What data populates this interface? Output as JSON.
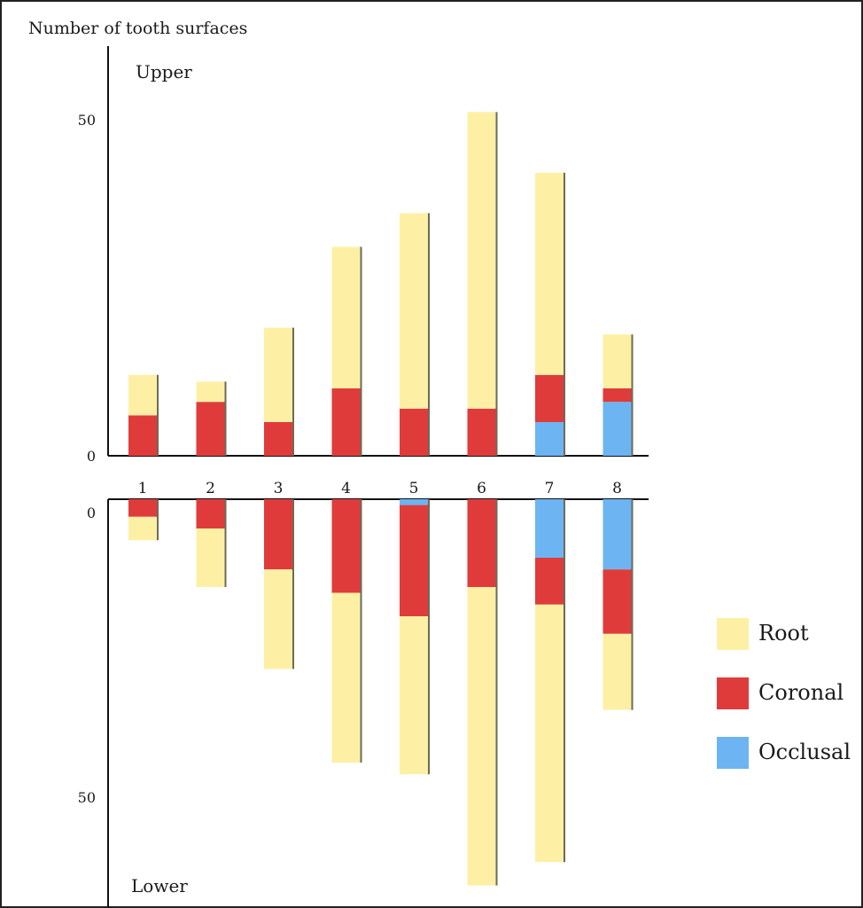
{
  "chart_data": {
    "type": "bar",
    "stacked": true,
    "mirrored": true,
    "ylabel": "Number of tooth surfaces",
    "categories": [
      "1",
      "2",
      "3",
      "4",
      "5",
      "6",
      "7",
      "8"
    ],
    "upper": {
      "label": "Upper",
      "ticks": [
        "0",
        "50"
      ],
      "ylim": [
        0,
        51
      ],
      "series": [
        {
          "name": "Occlusal",
          "color": "#6cb4f2",
          "values": [
            0,
            0,
            0,
            0,
            0,
            0,
            5,
            8
          ]
        },
        {
          "name": "Coronal",
          "color": "#e03b3b",
          "values": [
            6,
            8,
            5,
            10,
            7,
            7,
            7,
            2
          ]
        },
        {
          "name": "Root",
          "color": "#fdf0a4",
          "values": [
            6,
            3,
            14,
            21,
            29,
            44,
            30,
            8
          ]
        }
      ]
    },
    "lower": {
      "label": "Lower",
      "ticks": [
        "0",
        "50"
      ],
      "ylim": [
        0,
        66
      ],
      "series": [
        {
          "name": "Occlusal",
          "color": "#6cb4f2",
          "values": [
            0,
            0,
            0,
            0,
            1,
            0,
            10,
            12
          ]
        },
        {
          "name": "Coronal",
          "color": "#e03b3b",
          "values": [
            3,
            5,
            12,
            16,
            19,
            15,
            8,
            11
          ]
        },
        {
          "name": "Root",
          "color": "#fdf0a4",
          "values": [
            4,
            10,
            17,
            29,
            27,
            51,
            44,
            13
          ]
        }
      ]
    },
    "legend": {
      "placement": "right",
      "items": [
        {
          "name": "Root",
          "color": "#fdf0a4"
        },
        {
          "name": "Coronal",
          "color": "#e03b3b"
        },
        {
          "name": "Occlusal",
          "color": "#6cb4f2"
        }
      ]
    },
    "grid": false
  }
}
